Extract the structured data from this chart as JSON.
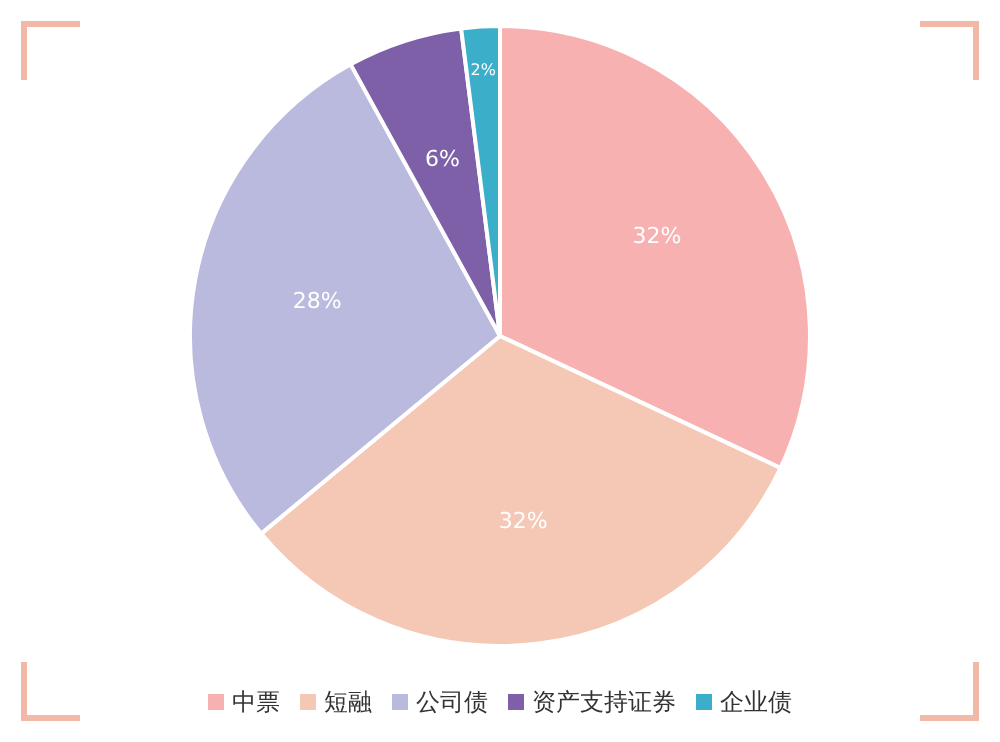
{
  "chart_data": {
    "type": "pie",
    "categories": [
      "中票",
      "短融",
      "公司债",
      "资产支持证券",
      "企业债"
    ],
    "values": [
      32,
      32,
      28,
      6,
      2
    ],
    "colors": [
      "#f7b1b1",
      "#f5c8b6",
      "#babadf",
      "#7d60a8",
      "#3bafc9"
    ],
    "value_labels": [
      "32%",
      "32%",
      "28%",
      "6%",
      "2%"
    ],
    "legend": "bottom"
  }
}
